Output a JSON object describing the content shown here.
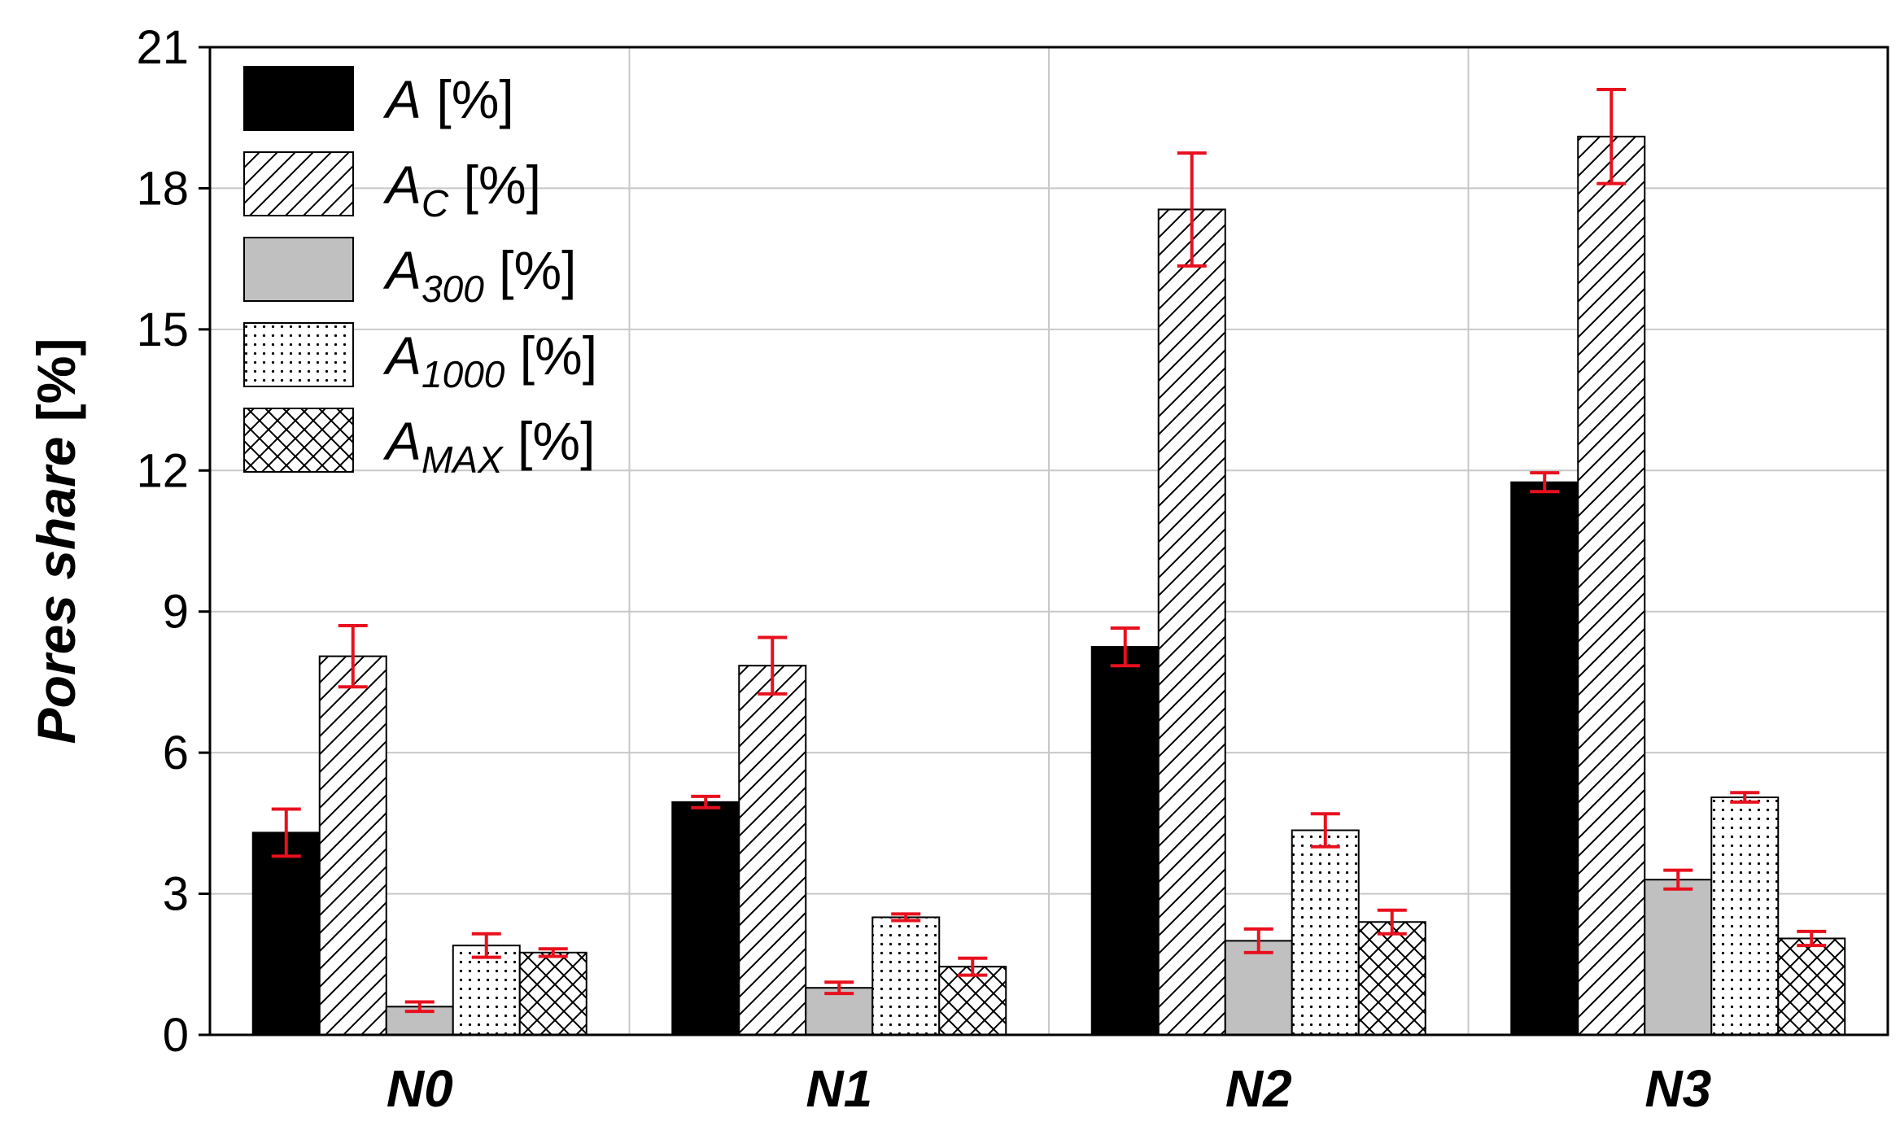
{
  "chart_data": {
    "type": "bar",
    "title": "",
    "xlabel": "",
    "ylabel": "Pores share [%]",
    "ylabel_parts": {
      "main": "Pores share",
      "unit": "[%]"
    },
    "ylim": [
      0,
      21
    ],
    "yticks": [
      0,
      3,
      6,
      9,
      12,
      15,
      18,
      21
    ],
    "grid": true,
    "legend_position": "top-left",
    "categories": [
      "N0",
      "N1",
      "N2",
      "N3"
    ],
    "series": [
      {
        "name": "A [%]",
        "label_main": "A",
        "label_sub": "",
        "unit": "[%]",
        "pattern": "solid-black",
        "values": [
          4.3,
          4.95,
          8.25,
          11.75
        ],
        "errors": [
          0.5,
          0.12,
          0.4,
          0.2
        ]
      },
      {
        "name": "AC [%]",
        "label_main": "A",
        "label_sub": "C",
        "unit": "[%]",
        "pattern": "diagonal",
        "values": [
          8.05,
          7.85,
          17.55,
          19.1
        ],
        "errors": [
          0.65,
          0.6,
          1.2,
          1.0
        ]
      },
      {
        "name": "A300 [%]",
        "label_main": "A",
        "label_sub": "300",
        "unit": "[%]",
        "pattern": "solid-gray",
        "values": [
          0.6,
          1.0,
          2.0,
          3.3
        ],
        "errors": [
          0.1,
          0.12,
          0.25,
          0.2
        ]
      },
      {
        "name": "A1000 [%]",
        "label_main": "A",
        "label_sub": "1000",
        "unit": "[%]",
        "pattern": "dots",
        "values": [
          1.9,
          2.5,
          4.35,
          5.05
        ],
        "errors": [
          0.25,
          0.07,
          0.35,
          0.1
        ]
      },
      {
        "name": "AMAX [%]",
        "label_main": "A",
        "label_sub": "MAX",
        "unit": "[%]",
        "pattern": "crosshatch",
        "values": [
          1.75,
          1.45,
          2.4,
          2.05
        ],
        "errors": [
          0.08,
          0.18,
          0.25,
          0.15
        ]
      }
    ],
    "colors": {
      "bar_black": "#000000",
      "bar_gray": "#c0c0c0",
      "error_bar": "#e8101e",
      "grid": "#c8c8c8",
      "frame": "#000000"
    }
  }
}
